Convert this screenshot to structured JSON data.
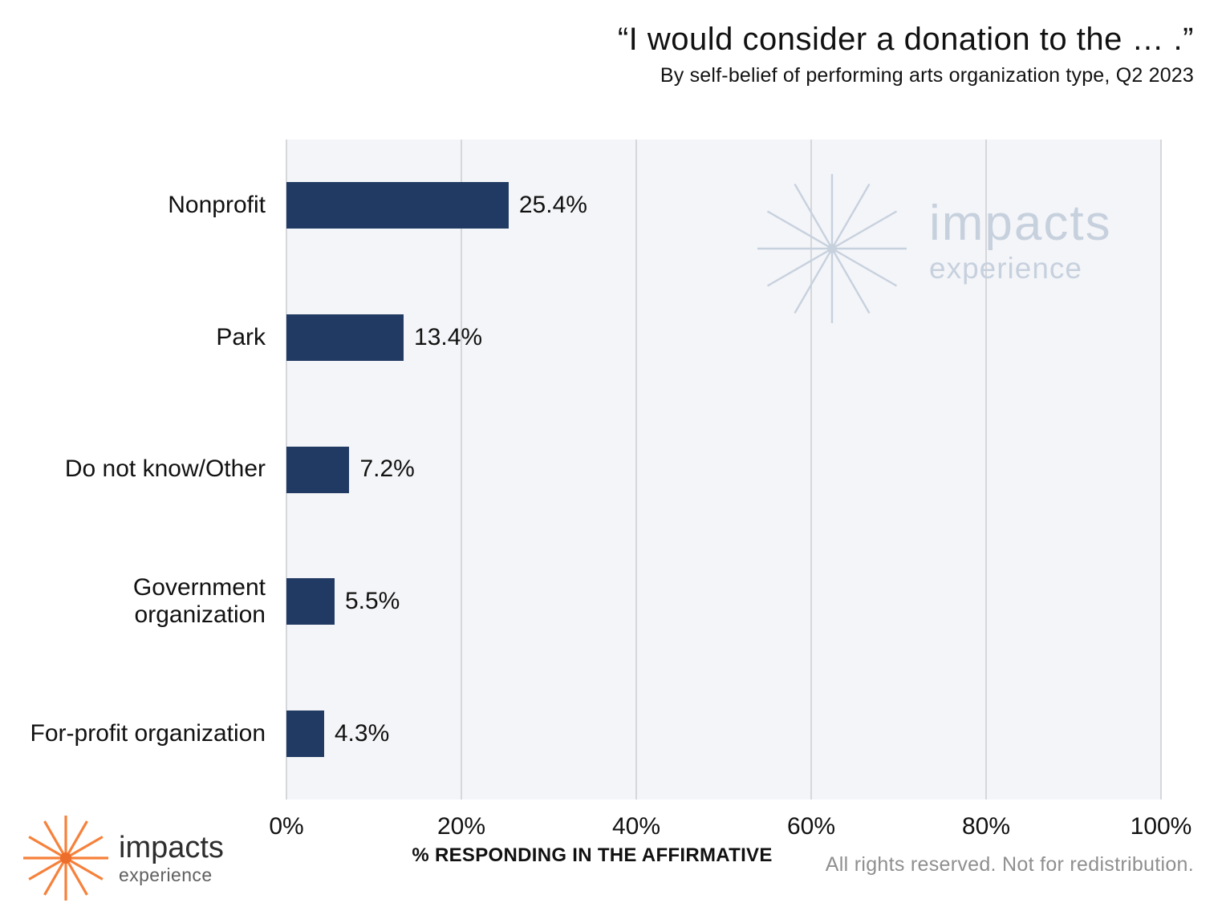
{
  "header": {
    "title": "“I would consider a donation to the … .”",
    "subtitle": "By self-belief of performing arts organization type, Q2 2023"
  },
  "chart_data": {
    "type": "bar",
    "orientation": "horizontal",
    "title": "“I would consider a donation to the … .”",
    "subtitle": "By self-belief of performing arts organization type, Q2 2023",
    "categories": [
      "Nonprofit",
      "Park",
      "Do not know/Other",
      "Government organization",
      "For-profit organization"
    ],
    "values": [
      25.4,
      13.4,
      7.2,
      5.5,
      4.3
    ],
    "value_labels": [
      "25.4%",
      "13.4%",
      "7.2%",
      "5.5%",
      "4.3%"
    ],
    "xlabel": "% RESPONDING IN THE AFFIRMATIVE",
    "ylabel": "",
    "xlim": [
      0,
      100
    ],
    "x_ticks": [
      0,
      20,
      40,
      60,
      80,
      100
    ],
    "x_tick_labels": [
      "0%",
      "20%",
      "40%",
      "60%",
      "80%",
      "100%"
    ],
    "grid": "vertical-only",
    "legend": "none",
    "bar_color": "#213A63",
    "plot_background": "#F4F5F8",
    "gridline_color": "#D5D7DB"
  },
  "watermark": {
    "brand": "impacts",
    "sub": "experience",
    "color": "#C7D1DE"
  },
  "footer": {
    "logo_brand": "impacts",
    "logo_sub": "experience",
    "logo_star_color": "#F6813B",
    "rights": "All rights reserved. Not for redistribution."
  }
}
